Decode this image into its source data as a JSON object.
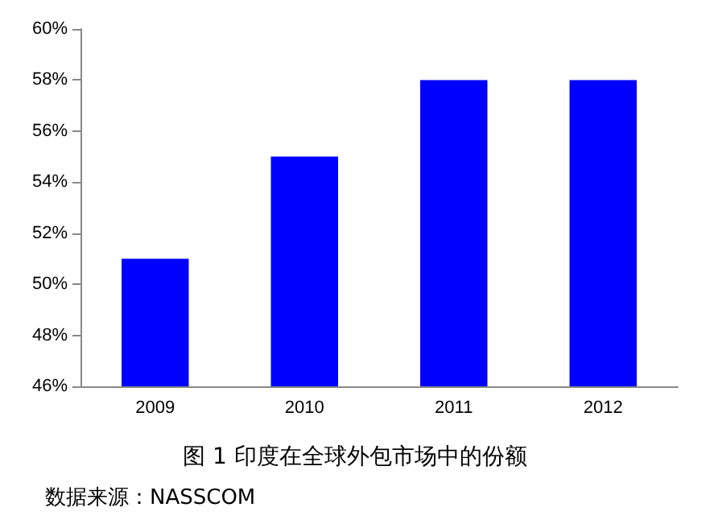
{
  "chart_data": {
    "type": "bar",
    "title": "图 1 印度在全球外包市场中的份额",
    "annotations": [
      "数据来源：NASSCOM"
    ],
    "categories": [
      "2009",
      "2010",
      "2011",
      "2012"
    ],
    "values": [
      51,
      55,
      58,
      58
    ],
    "color": "#0000ff",
    "ylim": [
      46,
      60
    ],
    "yticks": [
      {
        "value": 46,
        "label": "46%"
      },
      {
        "value": 48,
        "label": "48%"
      },
      {
        "value": 50,
        "label": "50%"
      },
      {
        "value": 52,
        "label": "52%"
      },
      {
        "value": 54,
        "label": "54%"
      },
      {
        "value": 56,
        "label": "56%"
      },
      {
        "value": 58,
        "label": "58%"
      },
      {
        "value": 60,
        "label": "60%"
      }
    ],
    "grid": false
  }
}
